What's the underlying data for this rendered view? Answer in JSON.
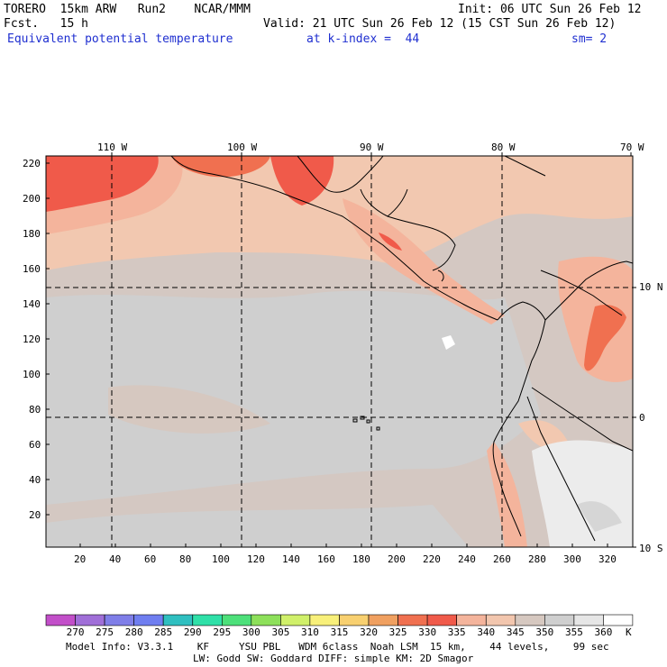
{
  "header": {
    "model": "TORERO  15km ARW   Run2    NCAR/MMM",
    "init": "Init: 06 UTC Sun 26 Feb 12",
    "fcst": "Fcst.   15 h",
    "valid": "Valid: 21 UTC Sun 26 Feb 12 (15 CST Sun 26 Feb 12)",
    "field": "Equivalent potential temperature",
    "kindex": "at k-index =  44",
    "smooth": "sm= 2"
  },
  "map": {
    "top_lon_labels": [
      "110 W",
      "100 W",
      "90 W",
      "80 W",
      "70 W"
    ],
    "right_lat_labels": [
      "10 N",
      "0",
      "10 S"
    ],
    "y_grid_labels": [
      "220",
      "200",
      "180",
      "160",
      "140",
      "120",
      "100",
      "80",
      "60",
      "40",
      "20"
    ],
    "x_grid_labels": [
      "20",
      "40",
      "60",
      "80",
      "100",
      "120",
      "140",
      "160",
      "180",
      "200",
      "220",
      "240",
      "260",
      "280",
      "300",
      "320"
    ]
  },
  "colorbar": {
    "labels": [
      "270",
      "275",
      "280",
      "285",
      "290",
      "295",
      "300",
      "305",
      "310",
      "315",
      "320",
      "325",
      "330",
      "335",
      "340",
      "345",
      "350",
      "355",
      "360",
      "K"
    ],
    "colors": [
      "#c24fc9",
      "#a06fd8",
      "#7f7ee8",
      "#6f7ef0",
      "#2fbfc0",
      "#2fe0a8",
      "#4de07a",
      "#8de05a",
      "#d0f06a",
      "#f8f07a",
      "#f8d070",
      "#f0a060",
      "#f07050",
      "#f05a4a",
      "#f4b49c",
      "#f2c6ae",
      "#d6c8c0",
      "#cfcfcf",
      "#e6e6e6",
      "#ffffff"
    ]
  },
  "footer": {
    "line1": "Model Info: V3.3.1    KF     YSU PBL   WDM 6class  Noah LSM  15 km,    44 levels,    99 sec",
    "line2": "LW: Godd SW: Goddard DIFF: simple KM: 2D Smagor"
  },
  "palette": {
    "base": "#d4c8c2",
    "grey": "#cfcfcf",
    "peach": "#f2c8b0",
    "salmon": "#f4b49c",
    "red": "#f05a4a",
    "white": "#ececec"
  }
}
